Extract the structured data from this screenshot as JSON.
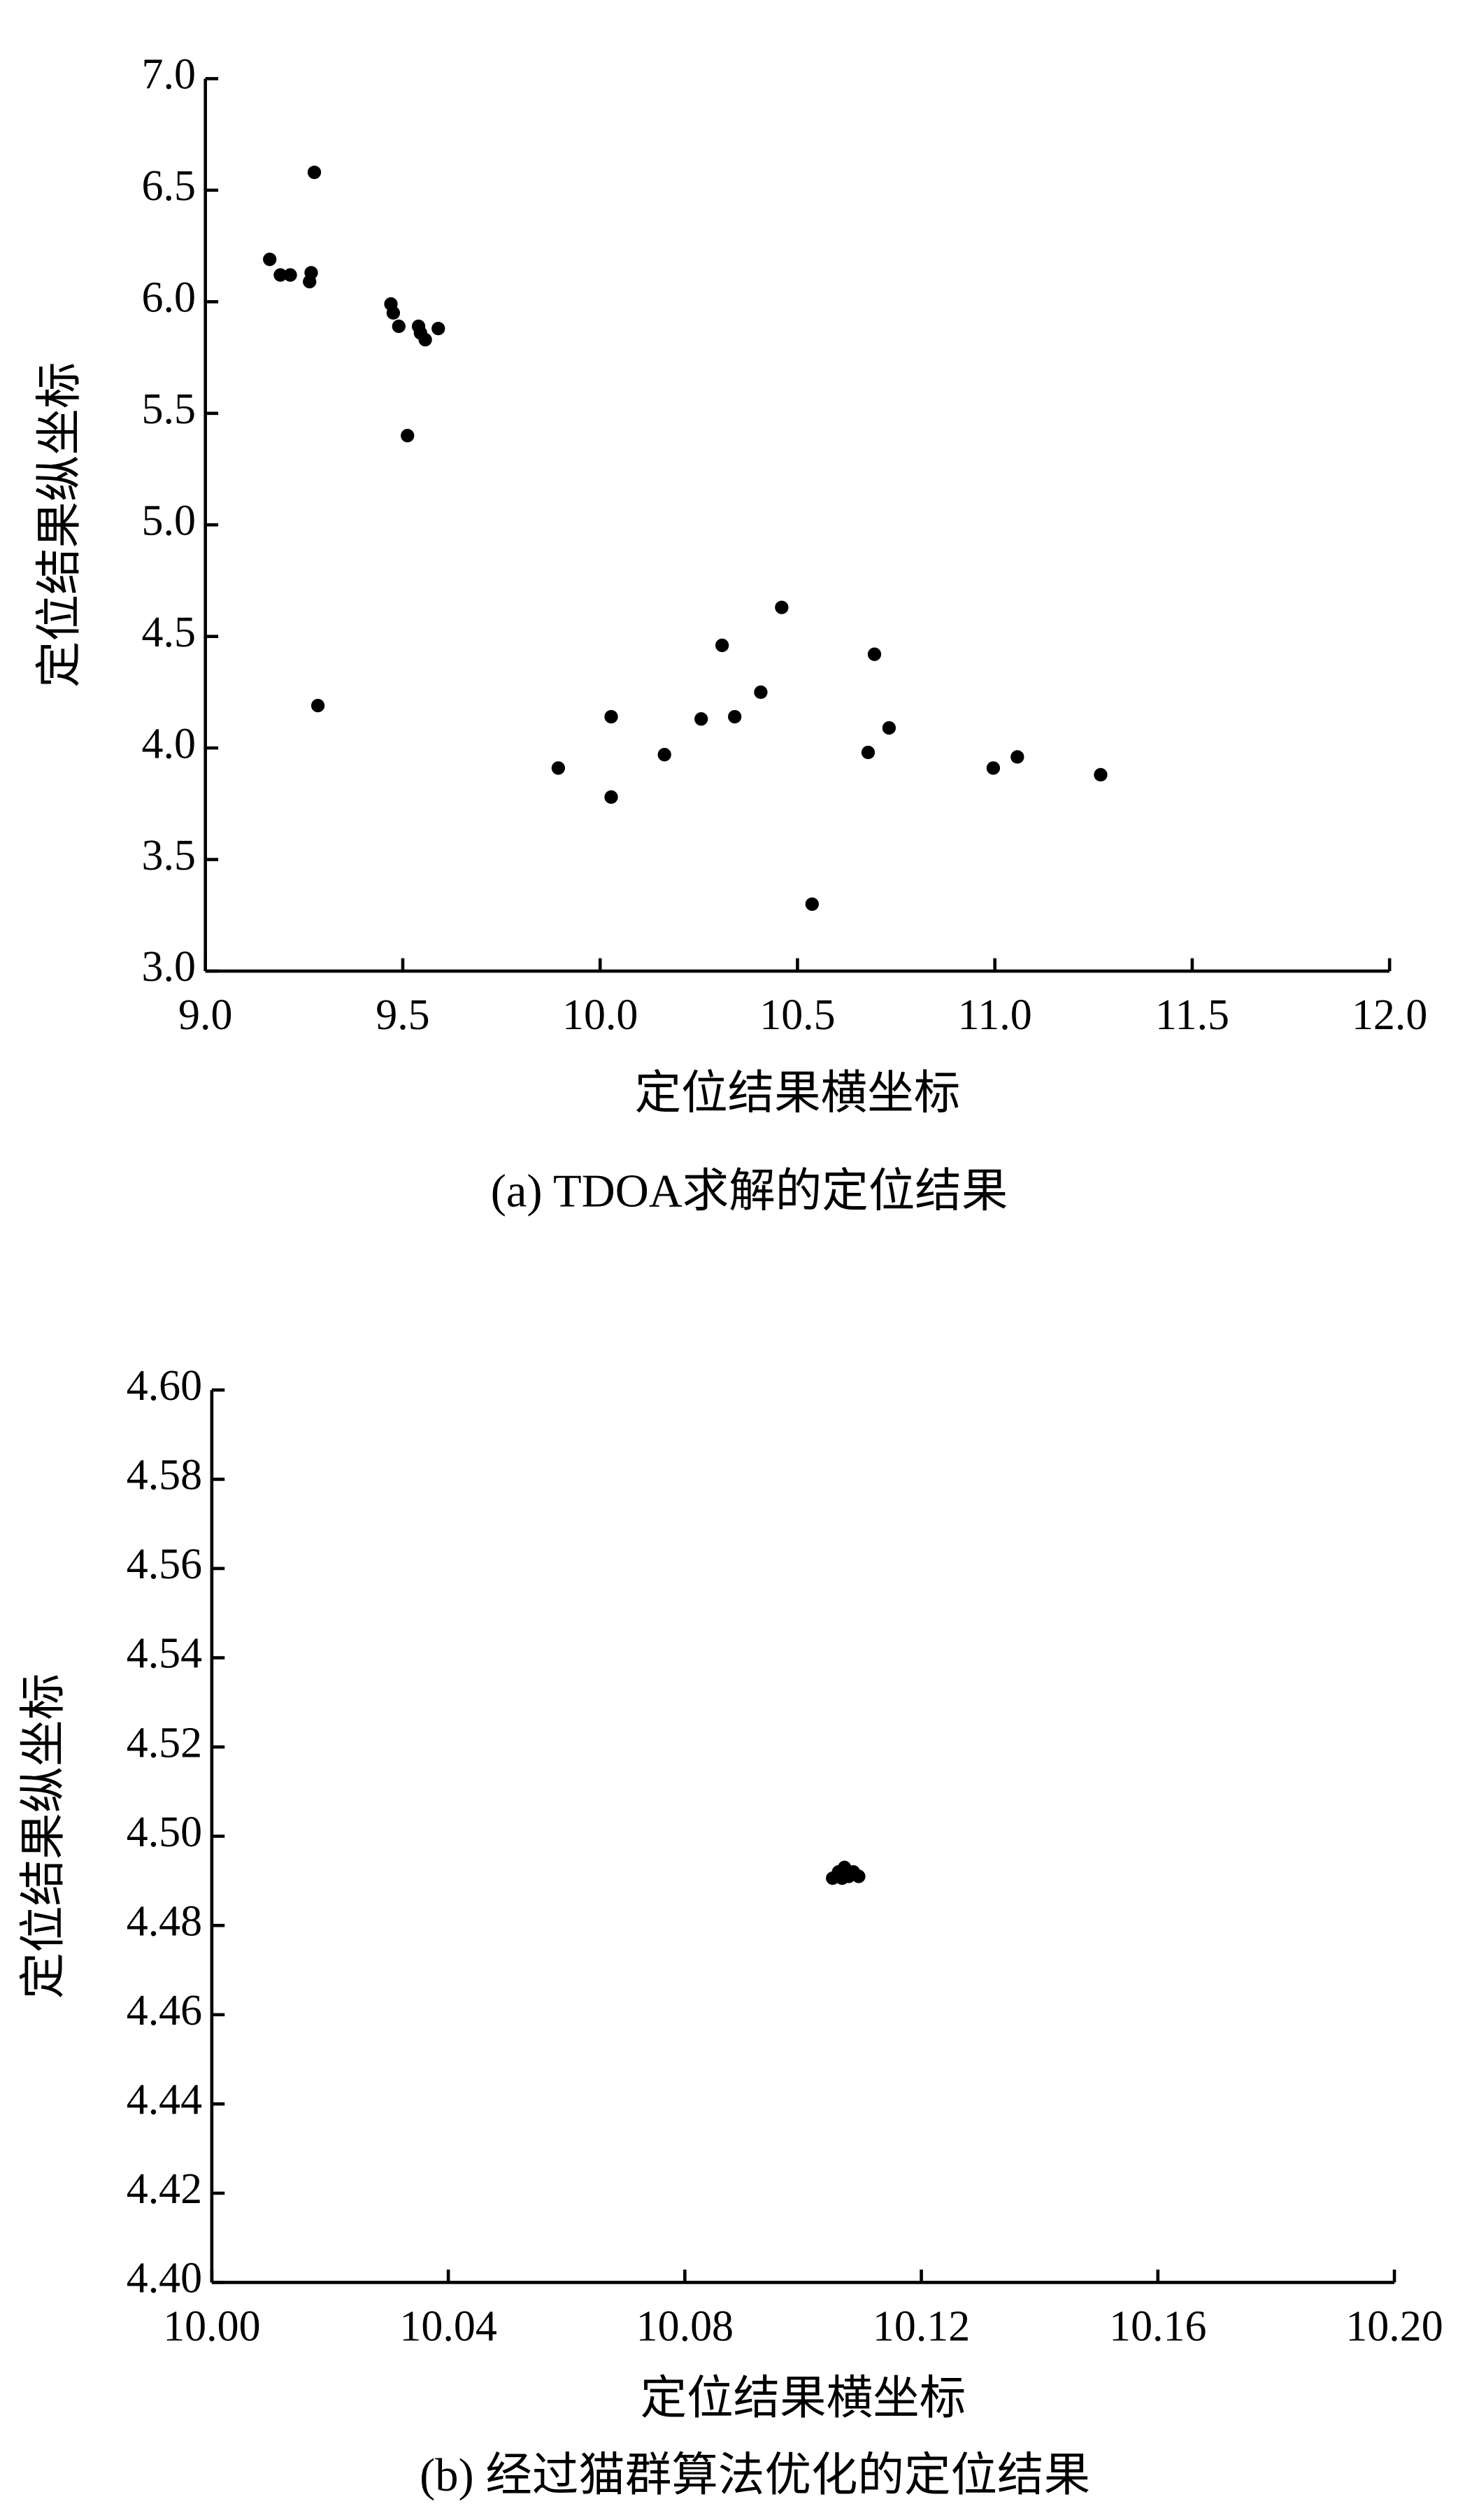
{
  "chart_data": [
    {
      "type": "scatter",
      "caption": "(a) TDOA求解的定位结果",
      "x_label": "定位结果横坐标",
      "y_label": "定位结果纵坐标",
      "color": "#000000",
      "x": [
        9.276,
        9.163,
        9.19,
        9.215,
        9.264,
        9.268,
        9.47,
        9.476,
        9.49,
        9.54,
        9.557,
        9.545,
        9.59,
        9.512,
        9.285,
        9.894,
        10.028,
        10.028,
        10.163,
        10.256,
        10.309,
        10.341,
        10.407,
        10.46,
        10.537,
        10.679,
        10.695,
        10.732,
        10.996,
        11.057,
        11.268
      ],
      "y": [
        6.58,
        6.19,
        6.12,
        6.12,
        6.09,
        6.13,
        5.99,
        5.95,
        5.89,
        5.89,
        5.83,
        5.86,
        5.88,
        5.4,
        4.19,
        3.91,
        4.14,
        3.78,
        3.97,
        4.13,
        4.46,
        4.14,
        4.25,
        4.63,
        3.3,
        3.98,
        4.42,
        4.09,
        3.91,
        3.96,
        3.88
      ],
      "xlim": [
        9.0,
        12.0
      ],
      "xticks": [
        {
          "value": 9.0,
          "label": "9.0"
        },
        9.5,
        {
          "value": 10.0,
          "label": "10.0"
        },
        10.5,
        {
          "value": 11.0,
          "label": "11.0"
        },
        11.5,
        {
          "value": 12.0,
          "label": "12.0"
        }
      ],
      "ylim": [
        3.0,
        7.0
      ],
      "yticks": [
        {
          "value": 3.0,
          "label": "3.0"
        },
        3.5,
        {
          "value": 4.0,
          "label": "4.0"
        },
        4.5,
        {
          "value": 5.0,
          "label": "5.0"
        },
        5.5,
        {
          "value": 6.0,
          "label": "6.0"
        },
        6.5,
        {
          "value": 7.0,
          "label": "7.0"
        }
      ]
    },
    {
      "type": "scatter",
      "caption": "(b) 经过猫群算法优化的定位结果",
      "x_label": "定位结果横坐标",
      "y_label": "定位结果纵坐标",
      "color": "#000000",
      "x": [
        10.105,
        10.106,
        10.107,
        10.1077,
        10.1085,
        10.1094,
        10.1066,
        10.106
      ],
      "y": [
        4.4906,
        4.4917,
        4.493,
        4.491,
        4.492,
        4.491,
        4.4906,
        4.492
      ],
      "xlim": [
        10.0,
        10.2
      ],
      "xticks": [
        {
          "value": 10.0,
          "label": "10.00"
        },
        10.04,
        10.08,
        10.12,
        10.16,
        {
          "value": 10.2,
          "label": "10.20"
        }
      ],
      "ylim": [
        4.4,
        4.6
      ],
      "yticks": [
        {
          "value": 4.4,
          "label": "4.40"
        },
        4.42,
        4.44,
        4.46,
        4.48,
        {
          "value": 4.5,
          "label": "4.50"
        },
        4.52,
        4.54,
        4.56,
        4.58,
        {
          "value": 4.6,
          "label": "4.60"
        }
      ]
    }
  ]
}
